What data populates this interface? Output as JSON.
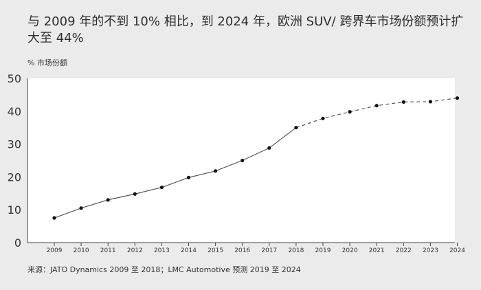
{
  "header": {
    "title": "与 2009 年的不到 10% 相比，到 2024 年，欧洲 SUV/ 跨界车市场份额预计扩大至 44%",
    "unit_label": "% 市场份额"
  },
  "footer": {
    "source": "来源：JATO Dynamics 2009 至 2018；LMC Automotive 预测 2019 至 2024"
  },
  "colors": {
    "line": "#555555",
    "point": "#111111",
    "plot_bg": "#ffffff",
    "page_bg": "#ebebeb"
  },
  "chart_data": {
    "type": "line",
    "title": "与 2009 年的不到 10% 相比，到 2024 年，欧洲 SUV/ 跨界车市场份额预计扩大至 44%",
    "ylabel": "% 市场份额",
    "xlabel": "",
    "x": [
      "2009",
      "2010",
      "2011",
      "2012",
      "2013",
      "2014",
      "2015",
      "2016",
      "2017",
      "2018",
      "2019",
      "2020",
      "2021",
      "2022",
      "2023",
      "2024"
    ],
    "series": [
      {
        "style": "solid",
        "x": [
          "2009",
          "2010",
          "2011",
          "2012",
          "2013",
          "2014",
          "2015",
          "2016",
          "2017",
          "2018"
        ],
        "values": [
          7.5,
          10.5,
          13.0,
          14.8,
          16.8,
          19.8,
          21.8,
          25.0,
          28.8,
          35.0
        ]
      },
      {
        "style": "dashed",
        "x": [
          "2018",
          "2019",
          "2020",
          "2021",
          "2022",
          "2023",
          "2024"
        ],
        "values": [
          35.0,
          37.8,
          39.8,
          41.7,
          42.8,
          42.9,
          44.0
        ]
      }
    ],
    "ylim": [
      0,
      50
    ],
    "yticks": [
      0,
      10,
      20,
      30,
      40,
      50
    ],
    "grid": false,
    "legend": "none"
  }
}
